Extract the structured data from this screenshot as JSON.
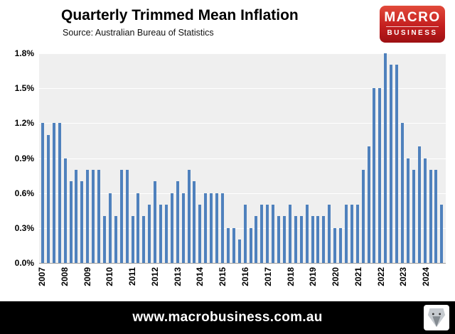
{
  "header": {
    "title": "Quarterly Trimmed Mean Inflation",
    "source": "Source: Australian Bureau of Statistics"
  },
  "logo": {
    "line1": "MACRO",
    "line2": "BUSINESS",
    "bg_color": "#c41f1f",
    "text_color": "#ffffff"
  },
  "footer": {
    "url": "www.macrobusiness.com.au"
  },
  "chart_data": {
    "type": "bar",
    "title": "Quarterly Trimmed Mean Inflation",
    "subtitle": "Source: Australian Bureau of Statistics",
    "xlabel": "",
    "ylabel": "",
    "ylim": [
      0,
      1.8
    ],
    "y_ticks": [
      "0.0%",
      "0.3%",
      "0.6%",
      "0.9%",
      "1.2%",
      "1.5%",
      "1.8%"
    ],
    "grid": "faint horizontal white gridlines on light gray plot background",
    "legend": "none",
    "bar_color": "#4f81bd",
    "plot_bg": "#efefef",
    "x_unit": "quarter",
    "quarters_per_year": 4,
    "years": [
      "2007",
      "2008",
      "2009",
      "2010",
      "2011",
      "2012",
      "2013",
      "2014",
      "2015",
      "2016",
      "2017",
      "2018",
      "2019",
      "2020",
      "2021",
      "2022",
      "2023",
      "2024"
    ],
    "values": [
      1.2,
      1.1,
      1.2,
      1.2,
      0.9,
      0.7,
      0.8,
      0.7,
      0.8,
      0.8,
      0.8,
      0.4,
      0.6,
      0.4,
      0.8,
      0.8,
      0.4,
      0.6,
      0.4,
      0.5,
      0.7,
      0.5,
      0.5,
      0.6,
      0.7,
      0.6,
      0.8,
      0.7,
      0.5,
      0.6,
      0.6,
      0.6,
      0.6,
      0.3,
      0.3,
      0.2,
      0.5,
      0.3,
      0.4,
      0.5,
      0.5,
      0.5,
      0.4,
      0.4,
      0.5,
      0.4,
      0.4,
      0.5,
      0.4,
      0.4,
      0.4,
      0.5,
      0.3,
      0.3,
      0.5,
      0.5,
      0.5,
      0.8,
      1.0,
      1.5,
      1.5,
      1.8,
      1.7,
      1.7,
      1.2,
      0.9,
      0.8,
      1.0,
      0.9,
      0.8,
      0.8,
      0.5
    ]
  }
}
